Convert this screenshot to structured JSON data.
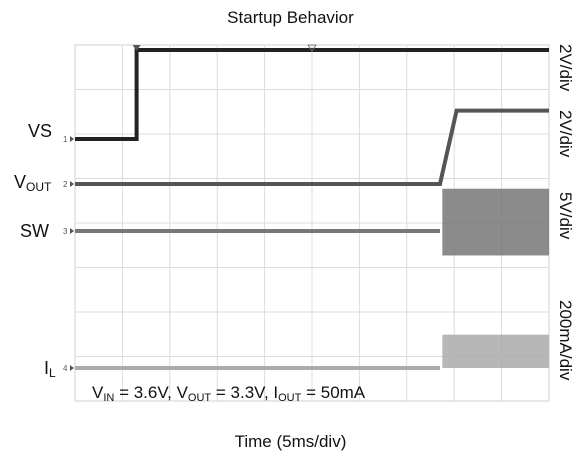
{
  "chart_data": {
    "type": "line",
    "title": "Startup Behavior",
    "xlabel": "Time (5ms/div)",
    "ylabel": "",
    "x_divisions": 10,
    "y_divisions": 8,
    "grid": true,
    "channels": [
      {
        "name": "VS",
        "name_parts": [
          "VS",
          ""
        ],
        "marker": "1",
        "scale": "2V/div",
        "color": "#222222",
        "points": [
          [
            0,
            0
          ],
          [
            1.3,
            0
          ],
          [
            1.3,
            2.0
          ],
          [
            10,
            2.0
          ]
        ]
      },
      {
        "name": "VOUT",
        "name_parts": [
          "V",
          "OUT"
        ],
        "marker": "2",
        "scale": "2V/div",
        "color": "#555555",
        "points": [
          [
            0,
            0
          ],
          [
            7.7,
            0
          ],
          [
            8.05,
            1.65
          ],
          [
            10,
            1.65
          ]
        ]
      },
      {
        "name": "SW",
        "name_parts": [
          "SW",
          ""
        ],
        "marker": "3",
        "scale": "5V/div",
        "color": "#777777",
        "points": [
          [
            0,
            0
          ],
          [
            7.7,
            0
          ]
        ],
        "switching_band": {
          "x_start": 7.75,
          "x_end": 10,
          "low": -0.55,
          "high": 0.95
        }
      },
      {
        "name": "IL",
        "name_parts": [
          "I",
          "L"
        ],
        "marker": "4",
        "scale": "200mA/div",
        "color": "#aaaaaa",
        "points": [
          [
            0,
            0
          ],
          [
            7.7,
            0
          ]
        ],
        "switching_band": {
          "x_start": 7.75,
          "x_end": 10,
          "low": 0.0,
          "high": 0.75
        }
      }
    ],
    "annotation": {
      "parts": [
        {
          "t": "V"
        },
        {
          "t": "IN",
          "sub": true
        },
        {
          "t": " = 3.6V, V"
        },
        {
          "t": "OUT",
          "sub": true
        },
        {
          "t": " = 3.3V, I"
        },
        {
          "t": "OUT",
          "sub": true
        },
        {
          "t": " = 50mA"
        }
      ]
    }
  }
}
